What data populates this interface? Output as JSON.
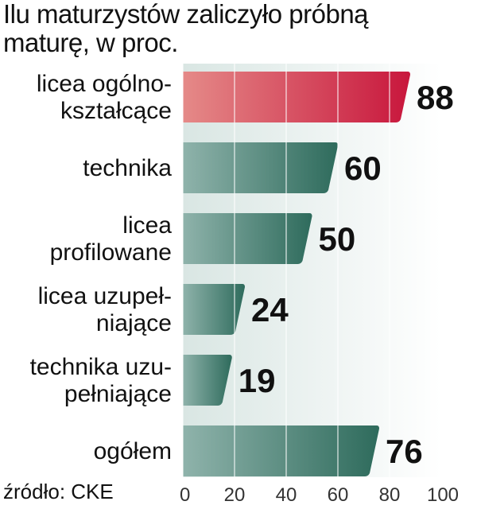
{
  "chart_data": {
    "type": "bar",
    "orientation": "horizontal",
    "title": "Ilu maturzystów zaliczyło próbną maturę, w proc.",
    "categories": [
      [
        "licea ogólno-",
        "kształcące"
      ],
      [
        "technika"
      ],
      [
        "licea",
        "profilowane"
      ],
      [
        "licea uzupeł-",
        "niające"
      ],
      [
        "technika uzu-",
        "pełniające"
      ],
      [
        "ogółem"
      ]
    ],
    "values": [
      88,
      60,
      50,
      24,
      19,
      76
    ],
    "value_labels": [
      "88",
      "60",
      "50",
      "24",
      "19",
      "76"
    ],
    "xlim": [
      0,
      100
    ],
    "xticks": [
      0,
      20,
      40,
      60,
      80,
      100
    ],
    "xtick_labels": [
      "0",
      "20",
      "40",
      "60",
      "80",
      "100"
    ],
    "grid": true,
    "highlight_index": 0,
    "colors": {
      "bar_default_left": "#8fb3ab",
      "bar_default_right": "#2e6b5c",
      "bar_highlight_left": "#e58a88",
      "bar_highlight_right": "#c8163c",
      "plot_background_left": "#d9e6e3",
      "plot_background_right": "#ffffff"
    }
  },
  "source": "źródło: CKE"
}
